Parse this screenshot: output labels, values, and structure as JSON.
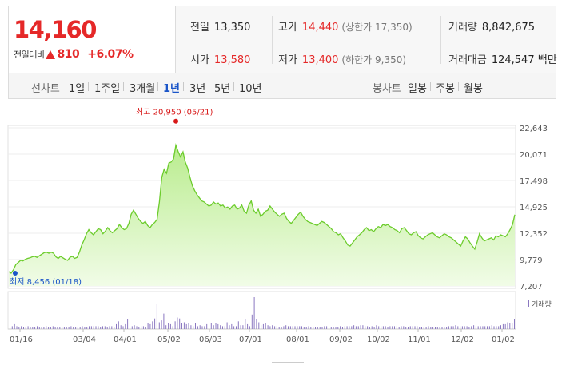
{
  "quote": {
    "price": "14,160",
    "change_label": "전일대비",
    "change_value": "810",
    "change_pct": "+6.07%",
    "stats": {
      "prev_close_label": "전일",
      "prev_close": "13,350",
      "high_label": "고가",
      "high": "14,440",
      "high_limit": "(상한가 17,350)",
      "volume_label": "거래량",
      "volume": "8,842,675",
      "open_label": "시가",
      "open": "13,580",
      "low_label": "저가",
      "low": "13,400",
      "low_limit": "(하한가 9,350)",
      "amount_label": "거래대금",
      "amount": "124,547 백만"
    },
    "colors": {
      "up": "#e52828",
      "link_active": "#1a55c8"
    }
  },
  "period_bar": {
    "line_label": "선차트",
    "line_periods": [
      "1일",
      "1주일",
      "3개월",
      "1년",
      "3년",
      "5년",
      "10년"
    ],
    "active_period": "1년",
    "candle_label": "봉차트",
    "candle_periods": [
      "일봉",
      "주봉",
      "월봉"
    ]
  },
  "chart_data": {
    "type": "area",
    "y_ticks": [
      "22,643",
      "20,071",
      "17,498",
      "14,925",
      "12,352",
      "9,779",
      "7,207"
    ],
    "ylim": [
      7207,
      22643
    ],
    "x_ticks": [
      "01/16",
      "03/04",
      "04/01",
      "05/02",
      "06/03",
      "07/01",
      "08/01",
      "09/02",
      "10/02",
      "11/01",
      "12/02",
      "01/02"
    ],
    "max_label": "최고 20,950 (05/21)",
    "min_label": "최저 8,456 (01/18)",
    "volume_legend": "거래량",
    "price_series": [
      8600,
      8456,
      8800,
      9300,
      9500,
      9700,
      9650,
      9800,
      9900,
      9950,
      10050,
      10100,
      10000,
      10150,
      10300,
      10450,
      10500,
      10400,
      10500,
      10400,
      10050,
      9900,
      10100,
      9950,
      9800,
      9700,
      10000,
      10100,
      9900,
      10000,
      10500,
      11200,
      11700,
      12300,
      12700,
      12400,
      12200,
      12500,
      12800,
      12700,
      12300,
      12550,
      12900,
      12600,
      12400,
      12600,
      12800,
      13200,
      12900,
      12700,
      12800,
      13300,
      14200,
      14600,
      14200,
      13800,
      13500,
      13300,
      13500,
      13100,
      12900,
      13200,
      13400,
      13700,
      15400,
      17800,
      18600,
      18200,
      19200,
      19300,
      19600,
      20950,
      20300,
      19800,
      20300,
      19300,
      18700,
      17800,
      17000,
      16500,
      16100,
      15800,
      15500,
      15400,
      15200,
      15000,
      15100,
      15400,
      15200,
      15300,
      15000,
      15100,
      14800,
      14900,
      14700,
      15000,
      15100,
      14700,
      14800,
      15100,
      14500,
      14300,
      15100,
      15500,
      14600,
      14300,
      14700,
      14000,
      14200,
      14500,
      14600,
      15000,
      14700,
      14400,
      14200,
      14000,
      14200,
      14300,
      13800,
      13500,
      13300,
      13600,
      13900,
      14200,
      14400,
      14000,
      13700,
      13500,
      13400,
      13300,
      13200,
      13100,
      13300,
      13500,
      13400,
      13200,
      13000,
      12800,
      12500,
      12400,
      12200,
      12300,
      11900,
      11600,
      11200,
      11100,
      11400,
      11700,
      12000,
      12200,
      12400,
      12700,
      12900,
      12600,
      12700,
      12500,
      12800,
      13000,
      12900,
      13200,
      13100,
      13200,
      13000,
      12900,
      12700,
      12600,
      12400,
      12800,
      12900,
      12600,
      12300,
      12200,
      12400,
      12500,
      12100,
      11900,
      11800,
      12000,
      12200,
      12300,
      12400,
      12200,
      12000,
      11900,
      12100,
      12300,
      12200,
      12000,
      11900,
      11700,
      11500,
      11300,
      11100,
      11600,
      12000,
      11800,
      11400,
      11100,
      10800,
      11500,
      12300,
      11900,
      11600,
      11700,
      11800,
      11900,
      11700,
      12100,
      12000,
      12200,
      12100,
      12000,
      12300,
      12700,
      13200,
      14160
    ],
    "volume_series": [
      4,
      3,
      5,
      3,
      2,
      3,
      2,
      2,
      3,
      2,
      2,
      2,
      3,
      2,
      2,
      2,
      3,
      2,
      2,
      3,
      2,
      2,
      2,
      2,
      2,
      2,
      2,
      3,
      2,
      2,
      2,
      2,
      3,
      2,
      2,
      3,
      3,
      3,
      3,
      3,
      2,
      3,
      3,
      2,
      3,
      3,
      2,
      5,
      8,
      4,
      3,
      5,
      10,
      7,
      3,
      4,
      3,
      2,
      3,
      3,
      2,
      6,
      5,
      8,
      11,
      26,
      7,
      9,
      16,
      4,
      6,
      5,
      3,
      8,
      12,
      11,
      6,
      7,
      5,
      6,
      4,
      3,
      6,
      3,
      4,
      3,
      3,
      5,
      4,
      6,
      4,
      6,
      5,
      4,
      3,
      3,
      7,
      4,
      5,
      3,
      3,
      8,
      4,
      4,
      10,
      5,
      3,
      15,
      33,
      10,
      7,
      4,
      5,
      6,
      4,
      3,
      4,
      3,
      3,
      2,
      2,
      3,
      4,
      3,
      3,
      3,
      3,
      3,
      3,
      3,
      2,
      2,
      3,
      2,
      2,
      2,
      2,
      2,
      2,
      3,
      3,
      2,
      2,
      2,
      2,
      2,
      3,
      2,
      3,
      3,
      3,
      3,
      4,
      3,
      3,
      4,
      4,
      3,
      3,
      2,
      3,
      2,
      4,
      3,
      3,
      3,
      3,
      2,
      3,
      3,
      3,
      3,
      2,
      3,
      3,
      2,
      2,
      3,
      3,
      3,
      3,
      2,
      2,
      2,
      2,
      3,
      2,
      2,
      2,
      2,
      2,
      2,
      2,
      2,
      3,
      3,
      3,
      4,
      3,
      3,
      3,
      3,
      3,
      2,
      3,
      4,
      3,
      3,
      3,
      3,
      3,
      3,
      3,
      4,
      3,
      3,
      3,
      4,
      5,
      5,
      7,
      6,
      6,
      10
    ]
  }
}
